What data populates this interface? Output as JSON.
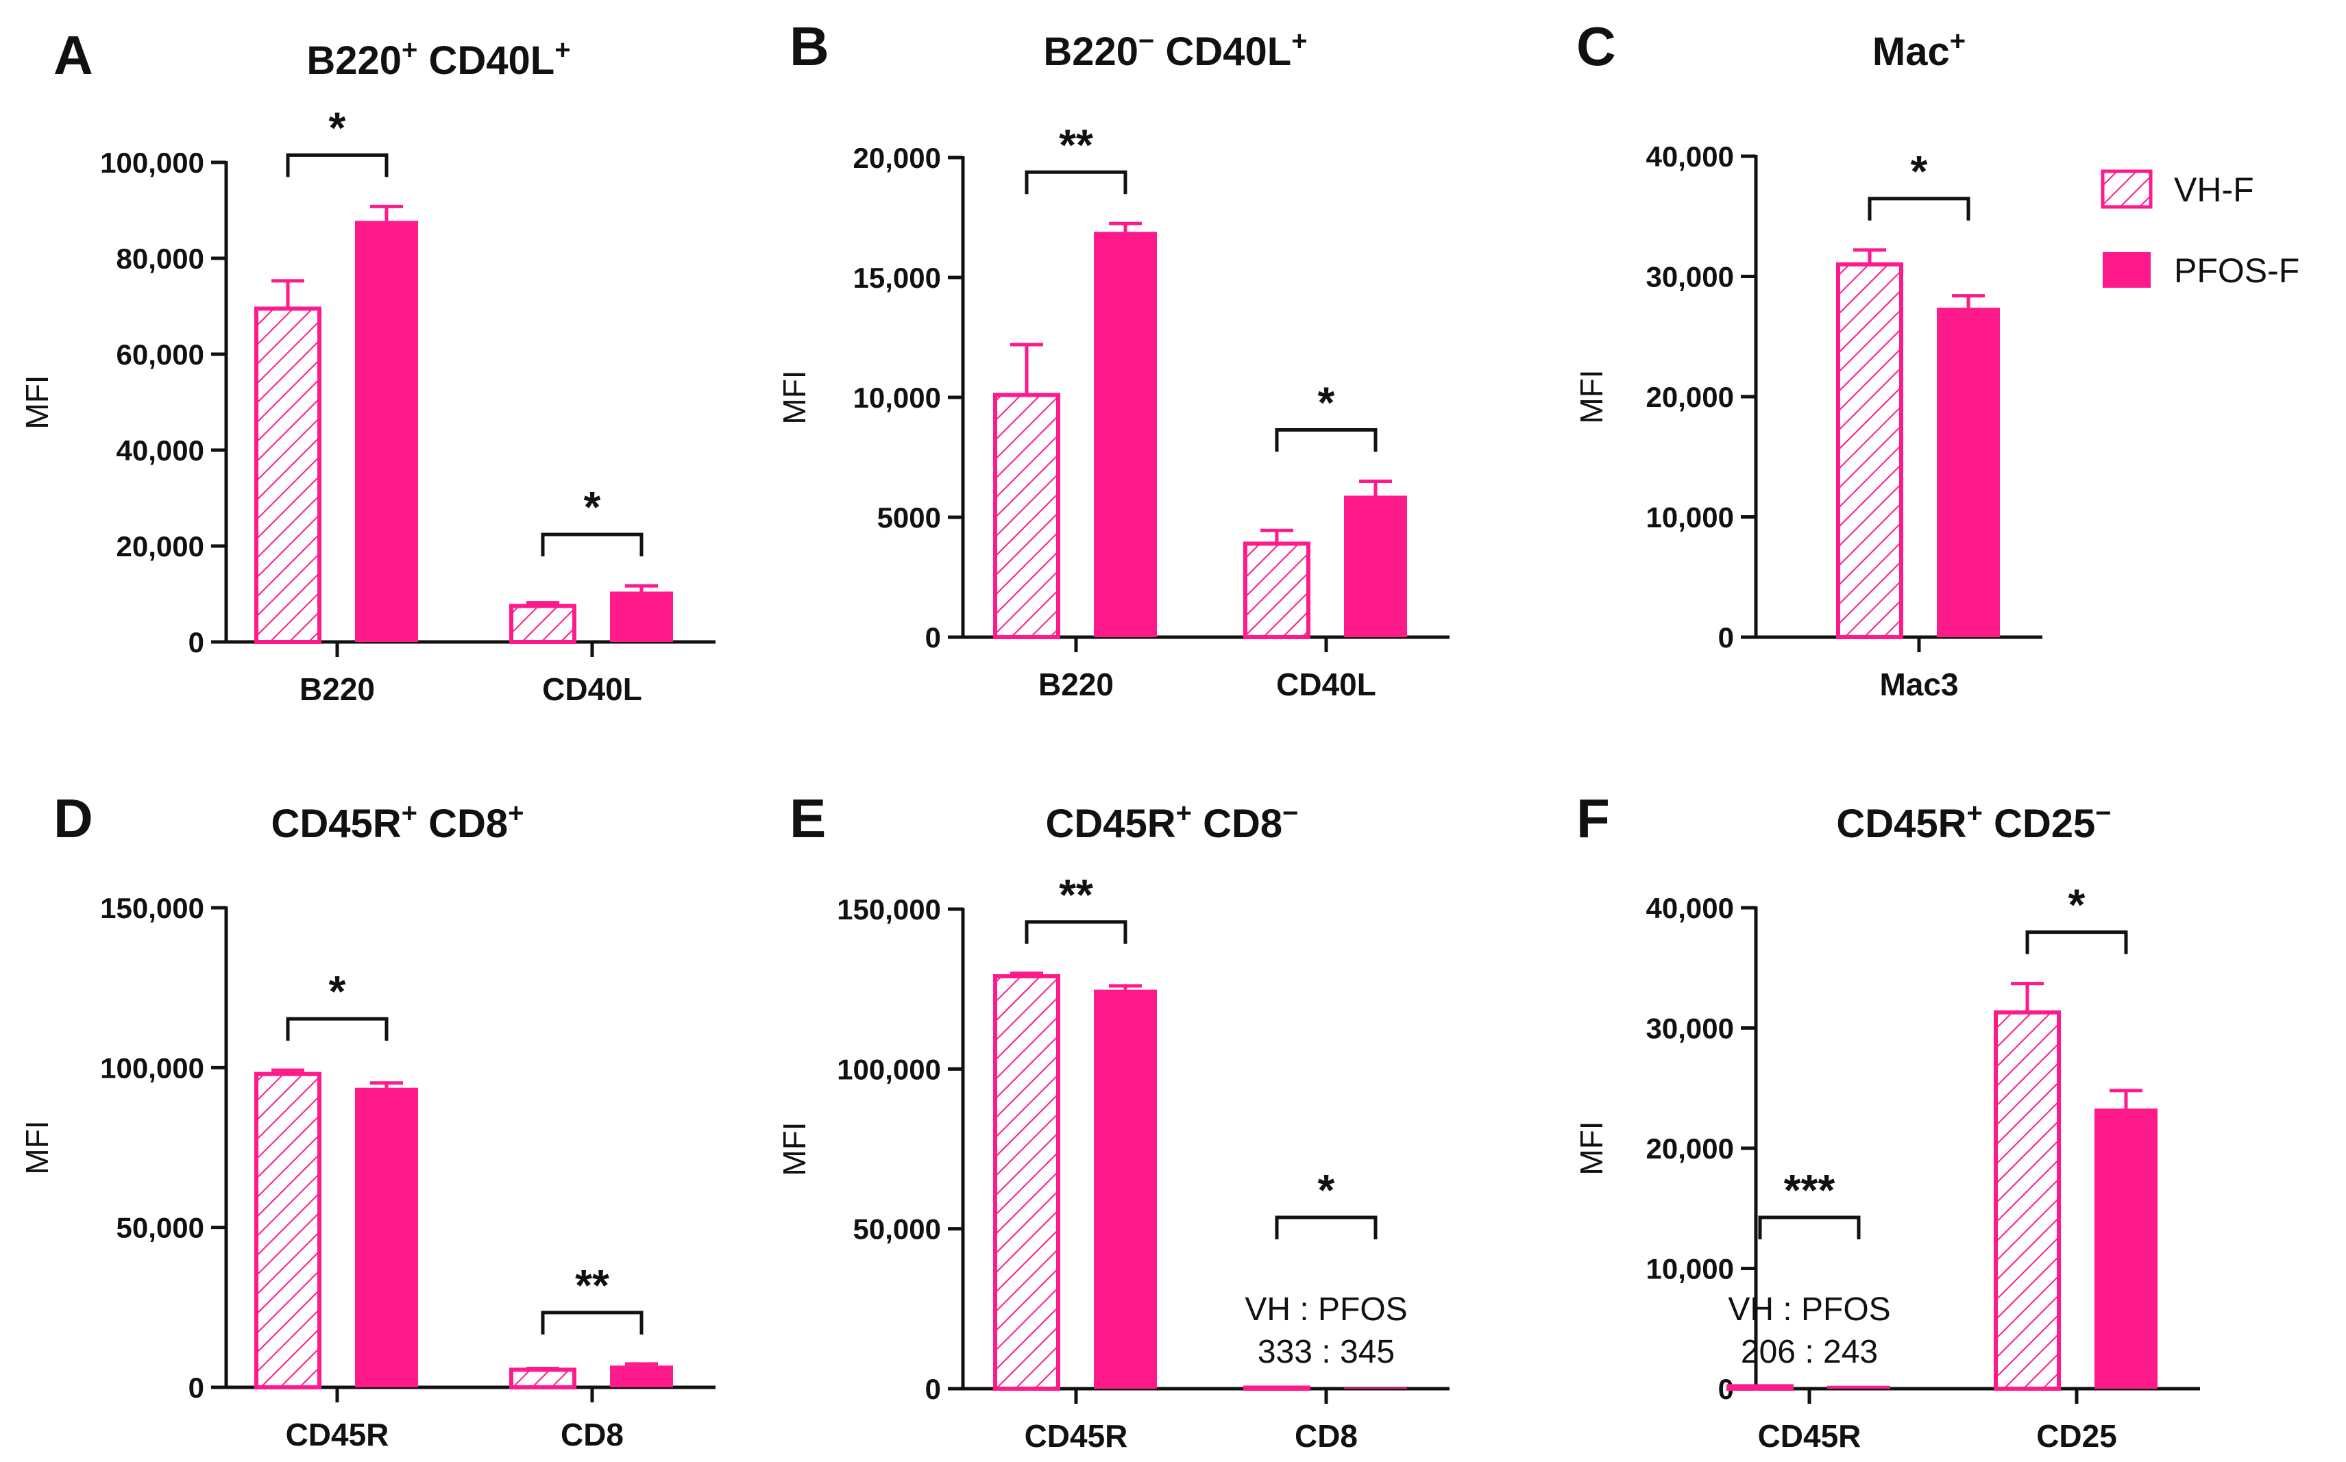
{
  "colors": {
    "series": "#ff1a8c",
    "axis": "#111111",
    "hatch_bg": "#ffffff"
  },
  "legend": [
    {
      "name": "VH-F",
      "style": "hatched"
    },
    {
      "name": "PFOS-F",
      "style": "solid"
    }
  ],
  "chart_data": [
    {
      "panel": "A",
      "type": "bar",
      "title_main": "B220",
      "title_sup1": "+",
      "title_mid": " CD40L",
      "title_sup2": "+",
      "ylabel": "MFI",
      "ylim": [
        0,
        100000
      ],
      "yticks": [
        0,
        20000,
        40000,
        60000,
        80000,
        100000
      ],
      "ytick_labels": [
        "0",
        "20,000",
        "40,000",
        "60,000",
        "80,000",
        "100,000"
      ],
      "categories": [
        "B220",
        "CD40L"
      ],
      "series": [
        {
          "name": "VH-F",
          "values": [
            69500,
            7500
          ],
          "errors": [
            5800,
            700
          ]
        },
        {
          "name": "PFOS-F",
          "values": [
            87800,
            10500
          ],
          "errors": [
            3000,
            1200
          ]
        }
      ],
      "significance": [
        "*",
        "*"
      ],
      "notes": []
    },
    {
      "panel": "B",
      "type": "bar",
      "title_main": "B220",
      "title_sup1": "−",
      "title_mid": " CD40L",
      "title_sup2": "+",
      "ylabel": "MFI",
      "ylim": [
        0,
        20000
      ],
      "yticks": [
        0,
        5000,
        10000,
        15000,
        20000
      ],
      "ytick_labels": [
        "0",
        "5000",
        "10,000",
        "15,000",
        "20,000"
      ],
      "categories": [
        "B220",
        "CD40L"
      ],
      "series": [
        {
          "name": "VH-F",
          "values": [
            10100,
            3900
          ],
          "errors": [
            2100,
            550
          ]
        },
        {
          "name": "PFOS-F",
          "values": [
            16900,
            5900
          ],
          "errors": [
            350,
            600
          ]
        }
      ],
      "significance": [
        "**",
        "*"
      ],
      "notes": []
    },
    {
      "panel": "C",
      "type": "bar",
      "title_main": "Mac",
      "title_sup1": "+",
      "title_mid": "",
      "title_sup2": "",
      "ylabel": "MFI",
      "ylim": [
        0,
        40000
      ],
      "yticks": [
        0,
        10000,
        20000,
        30000,
        40000
      ],
      "ytick_labels": [
        "0",
        "10,000",
        "20,000",
        "30,000",
        "40,000"
      ],
      "categories": [
        "Mac3"
      ],
      "series": [
        {
          "name": "VH-F",
          "values": [
            31000
          ],
          "errors": [
            1200
          ]
        },
        {
          "name": "PFOS-F",
          "values": [
            27400
          ],
          "errors": [
            1000
          ]
        }
      ],
      "significance": [
        "*"
      ],
      "notes": []
    },
    {
      "panel": "D",
      "type": "bar",
      "title_main": "CD45R",
      "title_sup1": "+",
      "title_mid": " CD8",
      "title_sup2": "+",
      "ylabel": "MFI",
      "ylim": [
        0,
        150000
      ],
      "yticks": [
        0,
        50000,
        100000,
        150000
      ],
      "ytick_labels": [
        "0",
        "50,000",
        "100,000",
        "150,000"
      ],
      "categories": [
        "CD45R",
        "CD8"
      ],
      "series": [
        {
          "name": "VH-F",
          "values": [
            98000,
            5500
          ],
          "errors": [
            1200,
            400
          ]
        },
        {
          "name": "PFOS-F",
          "values": [
            93700,
            6800
          ],
          "errors": [
            1500,
            500
          ]
        }
      ],
      "significance": [
        "*",
        "**"
      ],
      "notes": []
    },
    {
      "panel": "E",
      "type": "bar",
      "title_main": "CD45R",
      "title_sup1": "+",
      "title_mid": " CD8",
      "title_sup2": "−",
      "ylabel": "MFI",
      "ylim": [
        0,
        150000
      ],
      "yticks": [
        0,
        50000,
        100000,
        150000
      ],
      "ytick_labels": [
        "0",
        "50,000",
        "100,000",
        "150,000"
      ],
      "categories": [
        "CD45R",
        "CD8"
      ],
      "series": [
        {
          "name": "VH-F",
          "values": [
            129000,
            333
          ],
          "errors": [
            900,
            0
          ]
        },
        {
          "name": "PFOS-F",
          "values": [
            124800,
            345
          ],
          "errors": [
            1200,
            0
          ]
        }
      ],
      "significance": [
        "**",
        "*"
      ],
      "notes": [
        {
          "category": 1,
          "line1": "VH  : PFOS",
          "line2": "333 : 345"
        }
      ]
    },
    {
      "panel": "F",
      "type": "bar",
      "title_main": "CD45R",
      "title_sup1": "+",
      "title_mid": " CD25",
      "title_sup2": "−",
      "ylabel": "MFI",
      "ylim": [
        0,
        40000
      ],
      "yticks": [
        0,
        10000,
        20000,
        30000,
        40000
      ],
      "ytick_labels": [
        "0",
        "10,000",
        "20,000",
        "30,000",
        "40,000"
      ],
      "categories": [
        "CD45R",
        "CD25"
      ],
      "series": [
        {
          "name": "VH-F",
          "values": [
            206,
            31300
          ],
          "errors": [
            0,
            2400
          ]
        },
        {
          "name": "PFOS-F",
          "values": [
            243,
            23300
          ],
          "errors": [
            0,
            1500
          ]
        }
      ],
      "significance": [
        "***",
        "*"
      ],
      "notes": [
        {
          "category": 0,
          "line1": "VH  : PFOS",
          "line2": "206 : 243"
        }
      ]
    }
  ]
}
